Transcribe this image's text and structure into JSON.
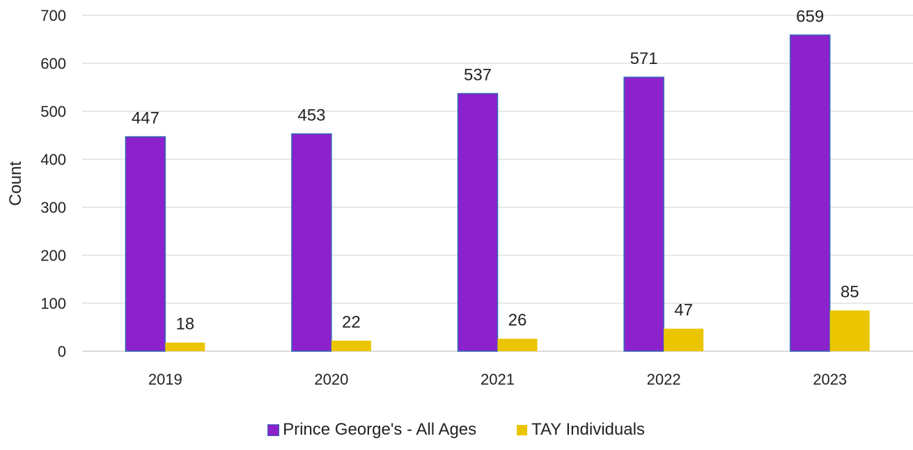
{
  "chart_data": {
    "type": "bar",
    "categories": [
      "2019",
      "2020",
      "2021",
      "2022",
      "2023"
    ],
    "series": [
      {
        "name": "Prince George's - All Ages",
        "values": [
          447,
          453,
          537,
          571,
          659
        ],
        "color": "#8B22CC",
        "stroke": "#2E6DB4"
      },
      {
        "name": "TAY Individuals",
        "values": [
          18,
          22,
          26,
          47,
          85
        ],
        "color": "#EAC500"
      }
    ],
    "title": "",
    "xlabel": "",
    "ylabel": "Count",
    "ylim": [
      0,
      700
    ],
    "yticks": [
      0,
      100,
      200,
      300,
      400,
      500,
      600,
      700
    ],
    "grid": true,
    "legend_position": "bottom"
  }
}
